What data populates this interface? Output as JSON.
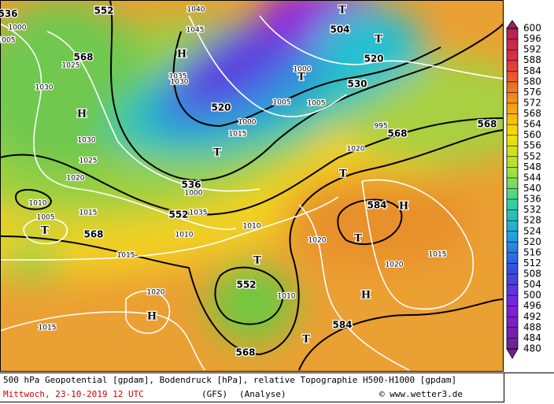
{
  "legend": {
    "levels": [
      600,
      596,
      592,
      588,
      584,
      580,
      576,
      572,
      568,
      564,
      560,
      556,
      552,
      548,
      544,
      540,
      536,
      532,
      528,
      524,
      520,
      516,
      512,
      508,
      504,
      500,
      496,
      492,
      488,
      484,
      480
    ]
  },
  "map": {
    "geopotential": [
      536,
      552,
      504,
      568,
      520,
      520,
      530,
      536,
      552,
      568,
      568,
      568,
      584,
      552,
      568,
      584
    ],
    "pressure": [
      1040,
      1045,
      1000,
      1005,
      1025,
      1030,
      1035,
      1030,
      1030,
      1025,
      1020,
      1010,
      1005,
      1015,
      1010,
      1015,
      1020,
      1015,
      995,
      1000,
      1005,
      1005,
      1000,
      1015,
      1020,
      1010,
      1020,
      1020,
      1015,
      1010,
      1035,
      1000
    ],
    "centers": [
      "H",
      "T",
      "T",
      "H",
      "T",
      "T",
      "T",
      "H",
      "T",
      "T",
      "H",
      "H",
      "T",
      "T"
    ]
  },
  "footer": {
    "description": "500 hPa Geopotential [gpdam], Bodendruck [hPa], relative Topographie H500-H1000 [gpdam]",
    "date": "Mittwoch, 23-10-2019  12 UTC",
    "model": "(GFS)",
    "run": "(Analyse)",
    "credit": "© www.wetter3.de"
  }
}
